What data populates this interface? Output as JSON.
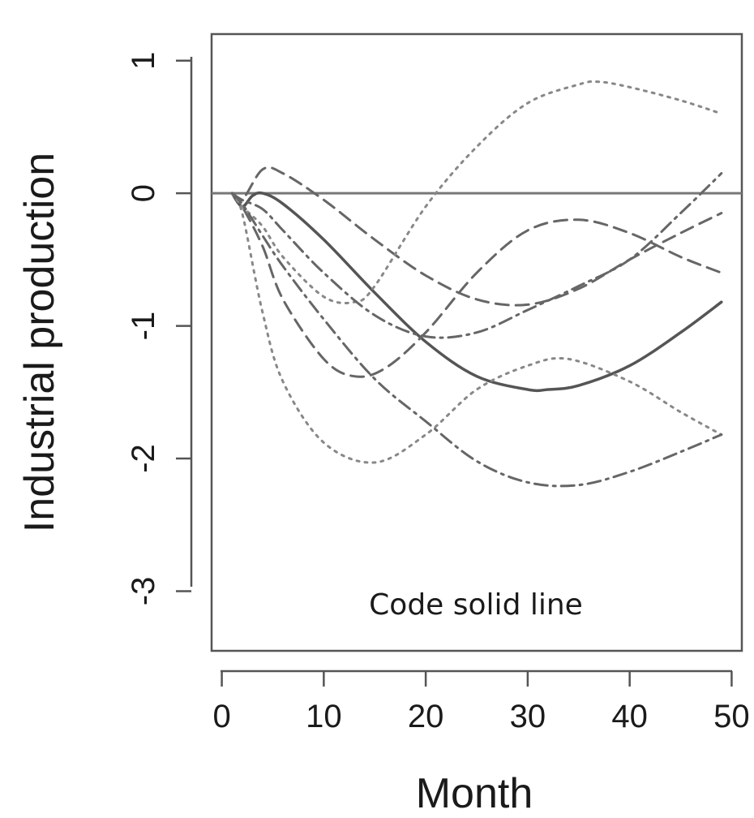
{
  "chart_data": {
    "type": "line",
    "title": "",
    "xlabel": "Month",
    "ylabel": "Industrial production",
    "annotation": "Code solid line",
    "xlim": [
      -1,
      51
    ],
    "ylim": [
      -3.45,
      1.2
    ],
    "xticks": [
      0,
      10,
      20,
      30,
      40,
      50
    ],
    "yticks": [
      1,
      0,
      -1,
      -2,
      -3
    ],
    "xtick_labels": [
      "0",
      "10",
      "20",
      "30",
      "40",
      "50"
    ],
    "ytick_labels": [
      "1",
      "0",
      "-1",
      "-2",
      "-3"
    ],
    "reference_line": {
      "y": 0,
      "color": "#777777"
    },
    "grid": false,
    "legend": "none",
    "series": [
      {
        "style": "solid",
        "color": "#555555",
        "x": [
          1,
          2,
          3,
          4,
          6,
          10,
          15,
          20,
          25,
          30,
          32,
          35,
          40,
          45,
          49
        ],
        "y": [
          0,
          -0.1,
          -0.02,
          0,
          -0.08,
          -0.35,
          -0.75,
          -1.12,
          -1.38,
          -1.48,
          -1.48,
          -1.45,
          -1.3,
          -1.05,
          -0.82
        ]
      },
      {
        "style": "dashed",
        "color": "#666666",
        "x": [
          1,
          2,
          4,
          6,
          10,
          15,
          20,
          25,
          30,
          35,
          40,
          45,
          49
        ],
        "y": [
          0,
          -0.05,
          0.18,
          0.15,
          -0.05,
          -0.35,
          -0.62,
          -0.8,
          -0.84,
          -0.72,
          -0.5,
          -0.3,
          -0.15
        ]
      },
      {
        "style": "dashed",
        "color": "#666666",
        "x": [
          1,
          2,
          4,
          6,
          10,
          13,
          16,
          20,
          25,
          30,
          35,
          40,
          45,
          49
        ],
        "y": [
          0,
          -0.1,
          -0.4,
          -0.8,
          -1.25,
          -1.38,
          -1.32,
          -1.05,
          -0.6,
          -0.28,
          -0.2,
          -0.3,
          -0.48,
          -0.6
        ]
      },
      {
        "style": "dotted",
        "color": "#888888",
        "x": [
          1,
          2,
          4,
          6,
          10,
          13,
          15,
          20,
          25,
          30,
          35,
          37,
          40,
          45,
          49
        ],
        "y": [
          0,
          -0.1,
          -0.25,
          -0.48,
          -0.78,
          -0.82,
          -0.7,
          -0.1,
          0.35,
          0.68,
          0.82,
          0.84,
          0.8,
          0.7,
          0.6
        ]
      },
      {
        "style": "dotted",
        "color": "#888888",
        "x": [
          1,
          2,
          4,
          6,
          10,
          15,
          20,
          25,
          30,
          34,
          40,
          45,
          49
        ],
        "y": [
          0,
          -0.15,
          -0.9,
          -1.42,
          -1.88,
          -2.03,
          -1.82,
          -1.48,
          -1.3,
          -1.25,
          -1.42,
          -1.65,
          -1.82
        ]
      },
      {
        "style": "dashdot",
        "color": "#666666",
        "x": [
          1,
          2,
          4,
          6,
          10,
          15,
          20,
          25,
          30,
          35,
          40,
          45,
          49
        ],
        "y": [
          0,
          -0.08,
          -0.32,
          -0.55,
          -0.95,
          -1.4,
          -1.72,
          -2.02,
          -2.18,
          -2.2,
          -2.1,
          -1.95,
          -1.82
        ]
      },
      {
        "style": "dashdot",
        "color": "#666666",
        "x": [
          1,
          2,
          4,
          6,
          10,
          15,
          20,
          25,
          30,
          35,
          40,
          45,
          49
        ],
        "y": [
          0,
          -0.05,
          -0.12,
          -0.28,
          -0.6,
          -0.92,
          -1.08,
          -1.05,
          -0.88,
          -0.7,
          -0.5,
          -0.15,
          0.15
        ]
      }
    ]
  }
}
